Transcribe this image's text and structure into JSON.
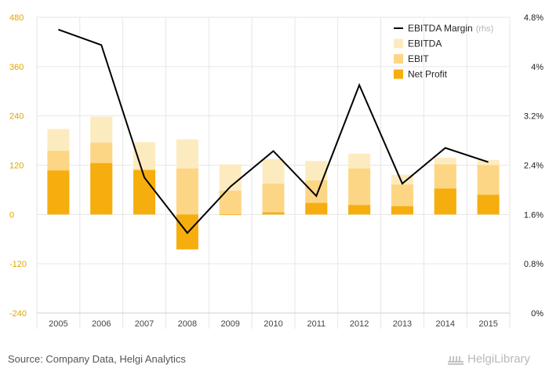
{
  "source_text": "Source: Company Data, Helgi Analytics",
  "brand_text": "HelgiLibrary",
  "chart_data": {
    "type": "bar",
    "categories": [
      "2005",
      "2006",
      "2007",
      "2008",
      "2009",
      "2010",
      "2011",
      "2012",
      "2013",
      "2014",
      "2015"
    ],
    "series": [
      {
        "name": "EBITDA",
        "kind": "bar",
        "axis": "left",
        "color": "#fdebc0",
        "values": [
          208,
          238,
          176,
          183,
          122,
          135,
          130,
          148,
          97,
          138,
          133
        ]
      },
      {
        "name": "EBIT",
        "kind": "bar",
        "axis": "left",
        "color": "#fdd685",
        "values": [
          155,
          175,
          110,
          112,
          58,
          75,
          83,
          112,
          73,
          122,
          120
        ]
      },
      {
        "name": "Net Profit",
        "kind": "bar",
        "axis": "left",
        "color": "#f6ae0e",
        "values": [
          107,
          125,
          108,
          -85,
          0,
          5,
          28,
          23,
          20,
          63,
          48
        ]
      },
      {
        "name": "EBITDA Margin",
        "legend_suffix": "(rhs)",
        "kind": "line",
        "axis": "right",
        "color": "#000000",
        "values": [
          4.6,
          4.35,
          2.2,
          1.3,
          2.05,
          2.63,
          1.9,
          3.7,
          2.1,
          2.68,
          2.45
        ]
      }
    ],
    "left_axis": {
      "min": -240,
      "max": 480,
      "ticks": [
        "-240",
        "-120",
        "0",
        "120",
        "240",
        "360",
        "480"
      ],
      "tick_values": [
        -240,
        -120,
        0,
        120,
        240,
        360,
        480
      ]
    },
    "right_axis": {
      "min": 0,
      "max": 4.8,
      "ticks": [
        "0%",
        "0.8%",
        "1.6%",
        "2.4%",
        "3.2%",
        "4%",
        "4.8%"
      ],
      "tick_values": [
        0,
        0.8,
        1.6,
        2.4,
        3.2,
        4,
        4.8
      ]
    },
    "legend_placement": "top-right",
    "grid": true
  }
}
